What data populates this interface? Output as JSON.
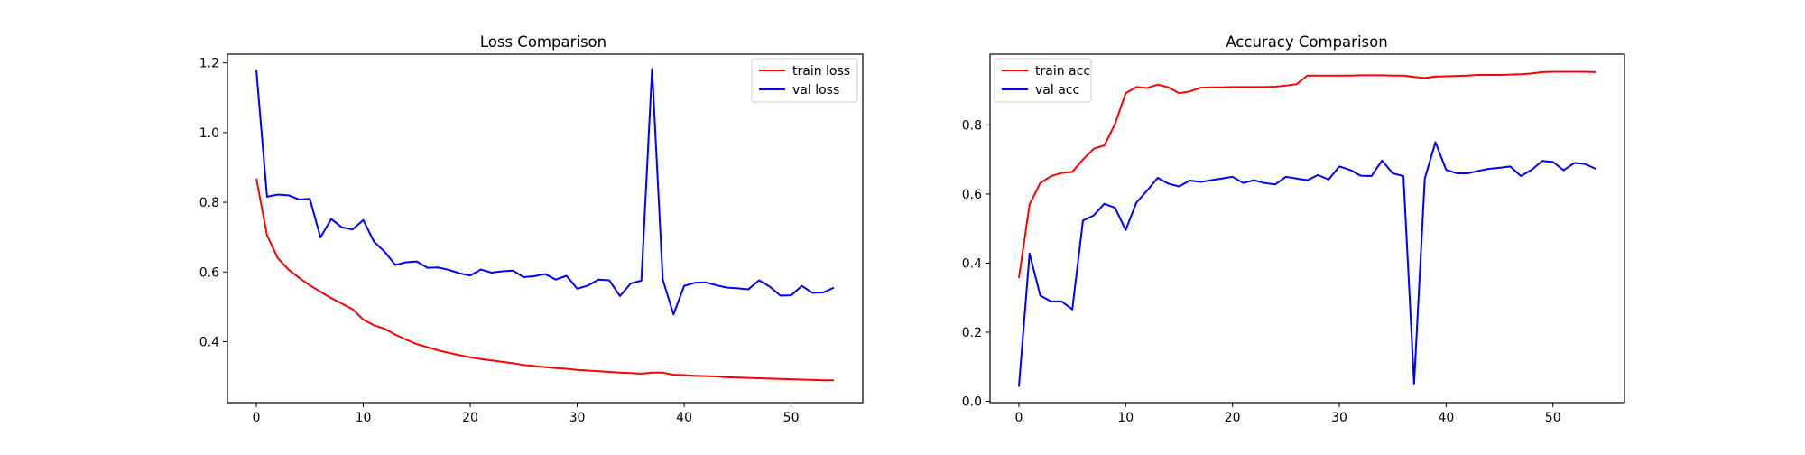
{
  "chart_data": [
    {
      "type": "line",
      "title": "Loss Comparison",
      "xlabel": "",
      "ylabel": "",
      "xlim": [
        -2.7,
        56.7
      ],
      "ylim": [
        0.225,
        1.225
      ],
      "xticks": [
        0,
        10,
        20,
        30,
        40,
        50
      ],
      "yticks": [
        0.4,
        0.6,
        0.8,
        1.0,
        1.2
      ],
      "ytick_labels": [
        "0.4",
        "0.6",
        "0.8",
        "1.0",
        "1.2"
      ],
      "grid": false,
      "legend_position": "top-right",
      "x": [
        0,
        1,
        2,
        3,
        4,
        5,
        6,
        7,
        8,
        9,
        10,
        11,
        12,
        13,
        14,
        15,
        16,
        17,
        18,
        19,
        20,
        21,
        22,
        23,
        24,
        25,
        26,
        27,
        28,
        29,
        30,
        31,
        32,
        33,
        34,
        35,
        36,
        37,
        38,
        39,
        40,
        41,
        42,
        43,
        44,
        45,
        46,
        47,
        48,
        49,
        50,
        51,
        52,
        53,
        54
      ],
      "series": [
        {
          "name": "train loss",
          "color": "#ff0000",
          "values": [
            0.868,
            0.705,
            0.64,
            0.607,
            0.583,
            0.562,
            0.543,
            0.525,
            0.509,
            0.493,
            0.463,
            0.447,
            0.437,
            0.42,
            0.406,
            0.393,
            0.384,
            0.375,
            0.368,
            0.361,
            0.355,
            0.35,
            0.346,
            0.342,
            0.338,
            0.333,
            0.33,
            0.327,
            0.324,
            0.322,
            0.319,
            0.317,
            0.315,
            0.313,
            0.311,
            0.31,
            0.308,
            0.311,
            0.311,
            0.305,
            0.304,
            0.302,
            0.301,
            0.3,
            0.298,
            0.297,
            0.296,
            0.295,
            0.294,
            0.293,
            0.292,
            0.291,
            0.29,
            0.289,
            0.289
          ]
        },
        {
          "name": "val loss",
          "color": "#0000ff",
          "values": [
            1.18,
            0.816,
            0.822,
            0.82,
            0.808,
            0.81,
            0.699,
            0.752,
            0.728,
            0.722,
            0.749,
            0.687,
            0.658,
            0.62,
            0.628,
            0.63,
            0.612,
            0.613,
            0.606,
            0.596,
            0.59,
            0.607,
            0.598,
            0.602,
            0.604,
            0.585,
            0.588,
            0.594,
            0.578,
            0.589,
            0.552,
            0.561,
            0.578,
            0.576,
            0.531,
            0.567,
            0.575,
            1.183,
            0.578,
            0.478,
            0.56,
            0.569,
            0.57,
            0.562,
            0.555,
            0.553,
            0.55,
            0.576,
            0.558,
            0.532,
            0.533,
            0.56,
            0.54,
            0.541,
            0.555
          ]
        }
      ]
    },
    {
      "type": "line",
      "title": "Accuracy Comparison",
      "xlabel": "",
      "ylabel": "",
      "xlim": [
        -2.7,
        56.7
      ],
      "ylim": [
        -0.004,
        1.005
      ],
      "xticks": [
        0,
        10,
        20,
        30,
        40,
        50
      ],
      "yticks": [
        0.0,
        0.2,
        0.4,
        0.6,
        0.8
      ],
      "ytick_labels": [
        "0.0",
        "0.2",
        "0.4",
        "0.6",
        "0.8"
      ],
      "grid": false,
      "legend_position": "top-left",
      "x": [
        0,
        1,
        2,
        3,
        4,
        5,
        6,
        7,
        8,
        9,
        10,
        11,
        12,
        13,
        14,
        15,
        16,
        17,
        18,
        19,
        20,
        21,
        22,
        23,
        24,
        25,
        26,
        27,
        28,
        29,
        30,
        31,
        32,
        33,
        34,
        35,
        36,
        37,
        38,
        39,
        40,
        41,
        42,
        43,
        44,
        45,
        46,
        47,
        48,
        49,
        50,
        51,
        52,
        53,
        54
      ],
      "series": [
        {
          "name": "train acc",
          "color": "#ff0000",
          "values": [
            0.357,
            0.57,
            0.632,
            0.652,
            0.661,
            0.664,
            0.7,
            0.731,
            0.741,
            0.803,
            0.892,
            0.91,
            0.907,
            0.917,
            0.909,
            0.892,
            0.897,
            0.908,
            0.909,
            0.909,
            0.91,
            0.91,
            0.91,
            0.91,
            0.911,
            0.914,
            0.918,
            0.943,
            0.943,
            0.943,
            0.943,
            0.943,
            0.944,
            0.944,
            0.944,
            0.943,
            0.943,
            0.939,
            0.936,
            0.94,
            0.941,
            0.942,
            0.943,
            0.945,
            0.945,
            0.945,
            0.946,
            0.947,
            0.949,
            0.953,
            0.954,
            0.954,
            0.954,
            0.954,
            0.953
          ]
        },
        {
          "name": "val acc",
          "color": "#0000ff",
          "values": [
            0.042,
            0.428,
            0.306,
            0.289,
            0.289,
            0.266,
            0.523,
            0.538,
            0.572,
            0.56,
            0.496,
            0.575,
            0.61,
            0.647,
            0.63,
            0.622,
            0.639,
            0.635,
            0.64,
            0.645,
            0.65,
            0.632,
            0.64,
            0.632,
            0.628,
            0.65,
            0.645,
            0.64,
            0.655,
            0.642,
            0.68,
            0.67,
            0.653,
            0.652,
            0.697,
            0.66,
            0.652,
            0.051,
            0.645,
            0.75,
            0.67,
            0.66,
            0.66,
            0.667,
            0.673,
            0.676,
            0.68,
            0.652,
            0.67,
            0.696,
            0.693,
            0.669,
            0.69,
            0.687,
            0.673
          ]
        }
      ]
    }
  ]
}
